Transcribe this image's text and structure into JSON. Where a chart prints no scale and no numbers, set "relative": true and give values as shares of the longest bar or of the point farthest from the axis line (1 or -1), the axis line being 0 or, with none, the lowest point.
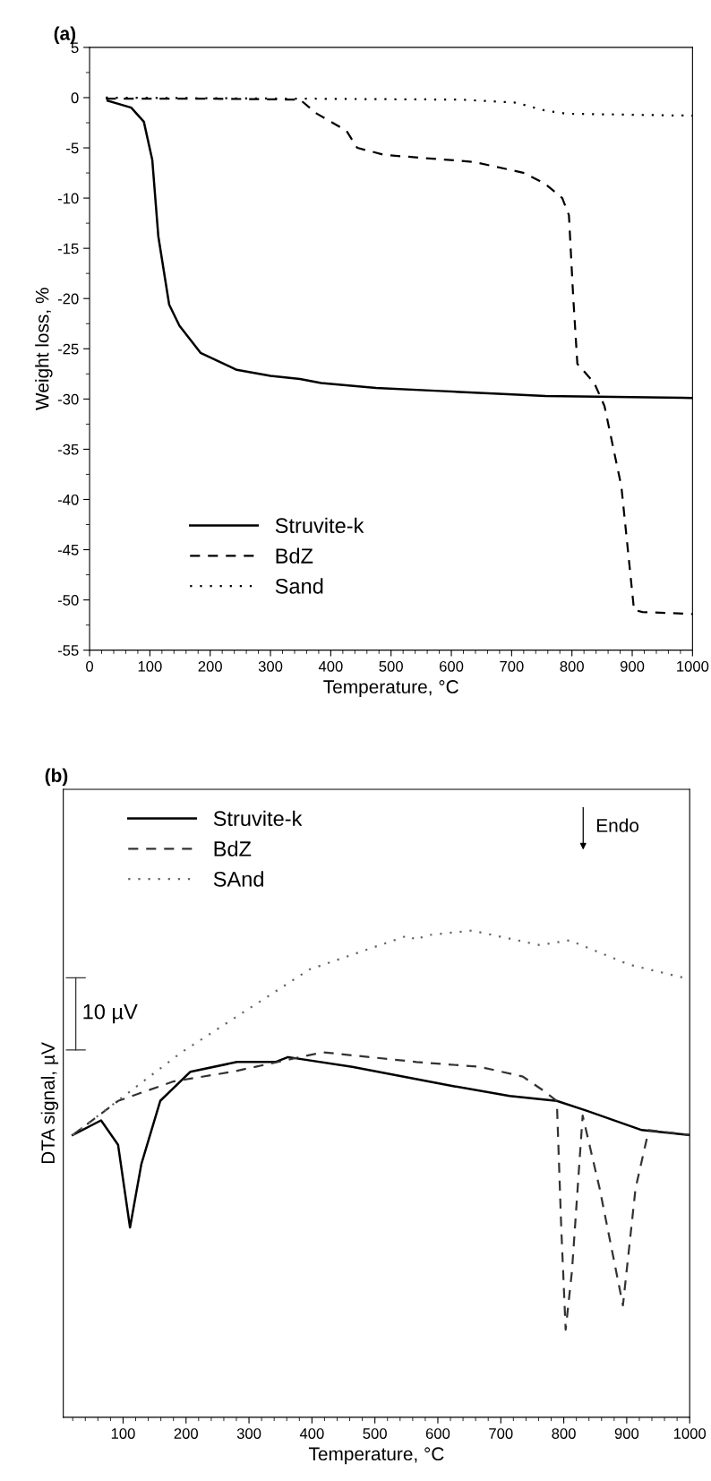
{
  "chart_data": [
    {
      "type": "line",
      "title": "(a)",
      "xlabel": "Temperature, °C",
      "ylabel": "Weight loss, %",
      "xlim": [
        0,
        1000
      ],
      "xticks": [
        0,
        100,
        200,
        300,
        400,
        500,
        600,
        700,
        800,
        900,
        1000
      ],
      "ylim": [
        -55,
        5
      ],
      "yticks": [
        -55,
        -50,
        -45,
        -40,
        -35,
        -30,
        -25,
        -20,
        -15,
        -10,
        -5,
        0,
        5
      ],
      "grid": false,
      "legend": "bottom left",
      "series": [
        {
          "name": "Struvite-k",
          "color": "#000000",
          "line_style": "solid",
          "x": [
            30,
            69,
            90,
            104,
            114,
            132,
            149,
            184,
            244,
            300,
            349,
            384,
            475,
            581,
            686,
            756,
            1000
          ],
          "values": [
            -0.3,
            -1.0,
            -2.4,
            -6.2,
            -13.8,
            -20.6,
            -22.7,
            -25.4,
            -27.1,
            -27.7,
            -28.0,
            -28.4,
            -28.9,
            -29.2,
            -29.5,
            -29.7,
            -29.9
          ]
        },
        {
          "name": "BdZ",
          "color": "#000000",
          "line_style": "dashed",
          "x": [
            27,
            195,
            349,
            377,
            426,
            444,
            489,
            637,
            721,
            756,
            784,
            795,
            802,
            809,
            837,
            854,
            882,
            903,
            917,
            1000
          ],
          "values": [
            -0.1,
            -0.1,
            -0.2,
            -1.6,
            -3.3,
            -5.0,
            -5.7,
            -6.4,
            -7.5,
            -8.6,
            -10.0,
            -11.7,
            -19.7,
            -26.5,
            -28.4,
            -30.7,
            -38.7,
            -51.0,
            -51.2,
            -51.4
          ]
        },
        {
          "name": "Sand",
          "color": "#000000",
          "line_style": "dotted",
          "x": [
            27,
            335,
            616,
            707,
            756,
            791,
            1000
          ],
          "values": [
            0,
            -0.1,
            -0.2,
            -0.5,
            -1.3,
            -1.6,
            -1.8
          ]
        }
      ]
    },
    {
      "type": "line",
      "title": "(b)",
      "xlabel": "Temperature, °C",
      "ylabel": "DTA signal, µV",
      "relative": true,
      "xlim": [
        5,
        1000
      ],
      "xticks": [
        100,
        200,
        300,
        400,
        500,
        600,
        700,
        800,
        900,
        1000
      ],
      "grid": false,
      "legend": "top left",
      "annotations": [
        "10 µV",
        "Endo"
      ],
      "series": [
        {
          "name": "Struvite-k",
          "color": "#000000",
          "line_style": "solid",
          "x": [
            20,
            65,
            92,
            111,
            129,
            159,
            207,
            281,
            342,
            362,
            464,
            626,
            714,
            789,
            836,
            924,
            1000
          ],
          "values": [
            0.58,
            0.61,
            0.56,
            0.39,
            0.52,
            0.65,
            0.71,
            0.73,
            0.73,
            0.74,
            0.72,
            0.68,
            0.66,
            0.65,
            0.63,
            0.59,
            0.58
          ]
        },
        {
          "name": "BdZ",
          "color": "#333333",
          "line_style": "dashed",
          "x": [
            20,
            92,
            180,
            274,
            417,
            566,
            667,
            735,
            769,
            789,
            796,
            803,
            813,
            830,
            857,
            894,
            914,
            935,
            1000
          ],
          "values": [
            0.58,
            0.65,
            0.69,
            0.71,
            0.75,
            0.73,
            0.72,
            0.7,
            0.67,
            0.65,
            0.39,
            0.18,
            0.3,
            0.62,
            0.47,
            0.23,
            0.47,
            0.59,
            0.58
          ]
        },
        {
          "name": "SAnd",
          "color": "#666666",
          "line_style": "dotted",
          "x": [
            20,
            193,
            396,
            553,
            566,
            580,
            654,
            762,
            809,
            904,
            1000
          ],
          "values": [
            0.58,
            0.75,
            0.92,
            0.99,
            0.98,
            0.99,
            1.0,
            0.97,
            0.98,
            0.93,
            0.9
          ]
        }
      ]
    }
  ]
}
